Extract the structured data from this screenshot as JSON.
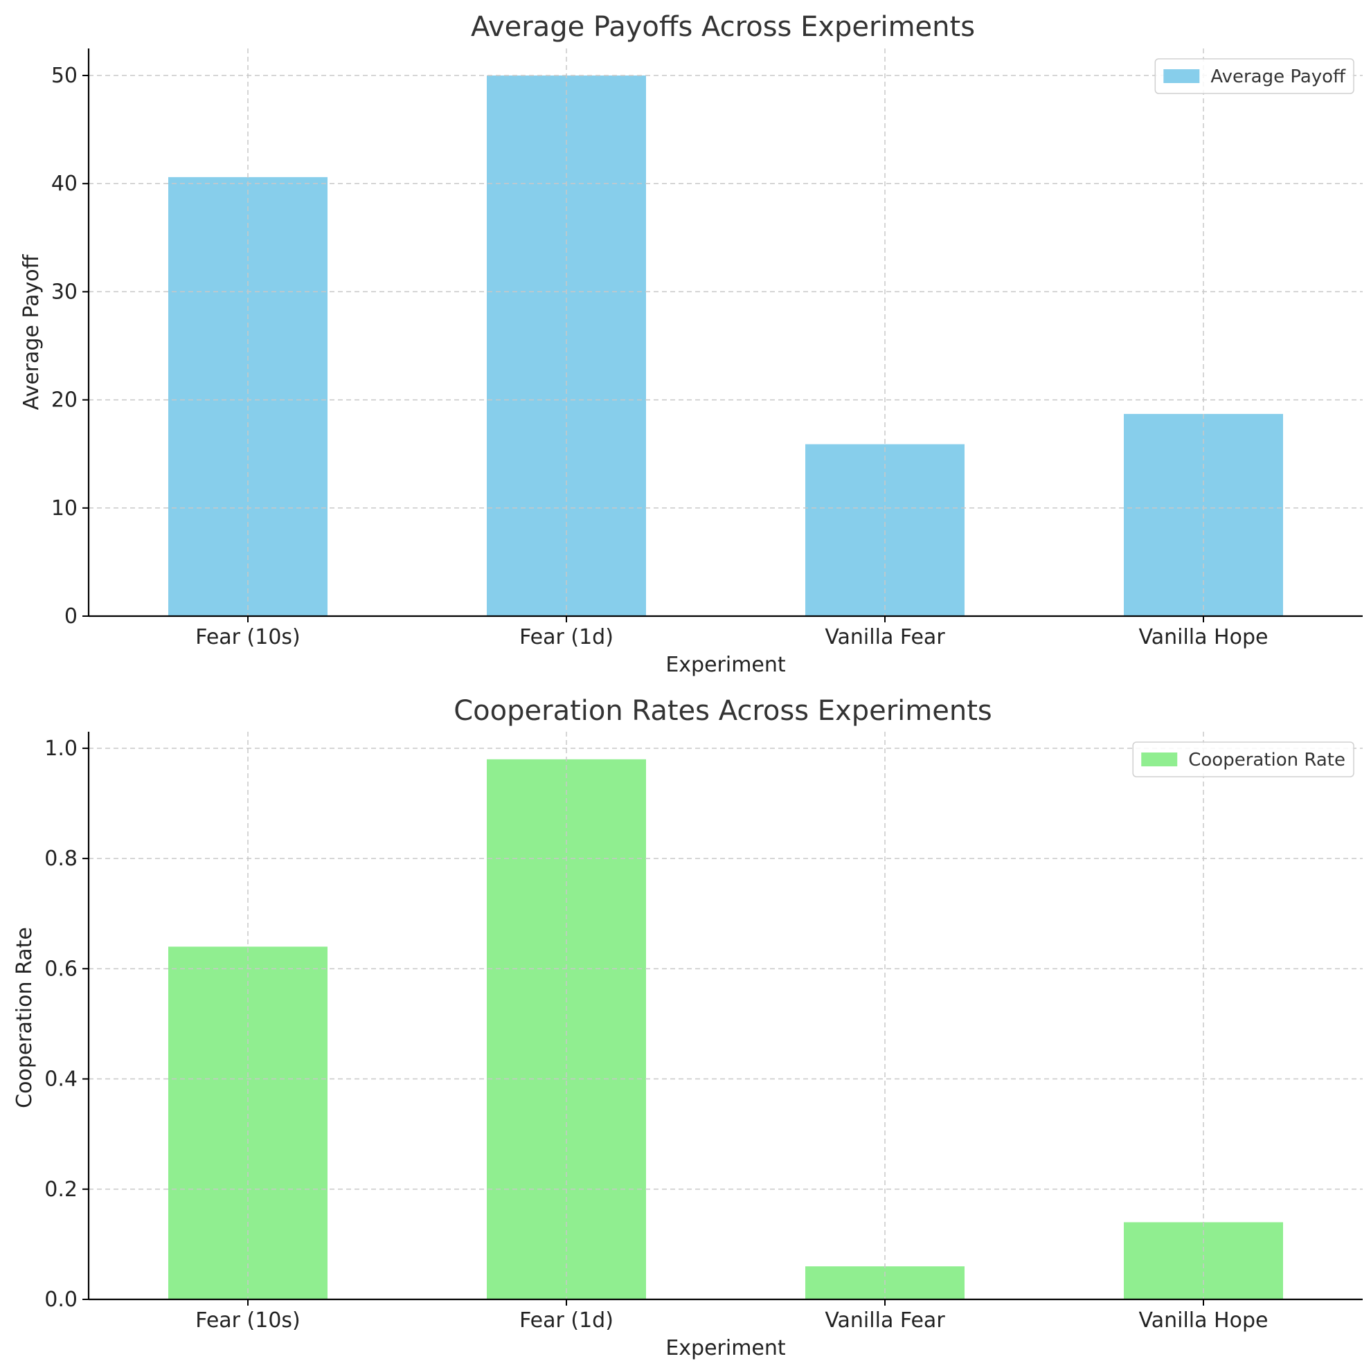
{
  "chart_data": [
    {
      "type": "bar",
      "title": "Average Payoffs Across Experiments",
      "xlabel": "Experiment",
      "ylabel": "Average Payoff",
      "categories": [
        "Fear (10s)",
        "Fear (1d)",
        "Vanilla Fear",
        "Vanilla Hope"
      ],
      "series": [
        {
          "name": "Average Payoff",
          "values": [
            40.6,
            50.0,
            15.9,
            18.7
          ],
          "color": "#87ceeb"
        }
      ],
      "ylim": [
        0,
        52.5
      ],
      "yticks": [
        0,
        10,
        20,
        30,
        40,
        50
      ],
      "ytick_labels": [
        "0",
        "10",
        "20",
        "30",
        "40",
        "50"
      ],
      "grid": true,
      "legend_position": "top-right"
    },
    {
      "type": "bar",
      "title": "Cooperation Rates Across Experiments",
      "xlabel": "Experiment",
      "ylabel": "Cooperation Rate",
      "categories": [
        "Fear (10s)",
        "Fear (1d)",
        "Vanilla Fear",
        "Vanilla Hope"
      ],
      "series": [
        {
          "name": "Cooperation Rate",
          "values": [
            0.64,
            0.98,
            0.06,
            0.14
          ],
          "color": "#90ee90"
        }
      ],
      "ylim": [
        0,
        1.03
      ],
      "yticks": [
        0,
        0.2,
        0.4,
        0.6,
        0.8,
        1.0
      ],
      "ytick_labels": [
        "0.0",
        "0.2",
        "0.4",
        "0.6",
        "0.8",
        "1.0"
      ],
      "grid": true,
      "legend_position": "top-right"
    }
  ]
}
